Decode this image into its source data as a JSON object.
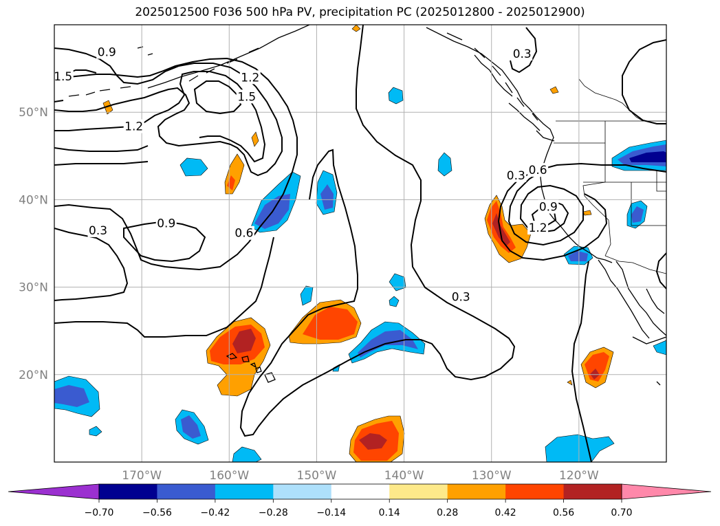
{
  "title": "2025012500 F036 500 hPa PV, precipitation PC (2025012800 - 2025012900)",
  "map": {
    "lon_range": [
      -180,
      -110
    ],
    "lat_range": [
      10,
      60
    ],
    "lon_ticks": [
      {
        "value": -170,
        "label": "170°W"
      },
      {
        "value": -160,
        "label": "160°W"
      },
      {
        "value": -150,
        "label": "150°W"
      },
      {
        "value": -140,
        "label": "140°W"
      },
      {
        "value": -130,
        "label": "130°W"
      },
      {
        "value": -120,
        "label": "120°W"
      }
    ],
    "lat_ticks": [
      {
        "value": 20,
        "label": "20°N"
      },
      {
        "value": 30,
        "label": "30°N"
      },
      {
        "value": 40,
        "label": "40°N"
      },
      {
        "value": 50,
        "label": "50°N"
      }
    ],
    "gridlines": true,
    "tick_label_color": "#808080"
  },
  "contour_labels": [
    {
      "text": "0.9",
      "lon": -174,
      "lat": 56.9
    },
    {
      "text": "1.5",
      "lon": -179,
      "lat": 54.1
    },
    {
      "text": "1.2",
      "lon": -170.9,
      "lat": 48.4
    },
    {
      "text": "1.2",
      "lon": -157.6,
      "lat": 54.0
    },
    {
      "text": "1.5",
      "lon": -158,
      "lat": 51.8
    },
    {
      "text": "0.9",
      "lon": -167.2,
      "lat": 37.3
    },
    {
      "text": "0.3",
      "lon": -175,
      "lat": 36.5
    },
    {
      "text": "0.6",
      "lon": -158.3,
      "lat": 36.2
    },
    {
      "text": "0.3",
      "lon": -133.5,
      "lat": 28.9
    },
    {
      "text": "0.3",
      "lon": -127.2,
      "lat": 42.8
    },
    {
      "text": "0.6",
      "lon": -124.7,
      "lat": 43.4
    },
    {
      "text": "0.9",
      "lon": -123.5,
      "lat": 39.2
    },
    {
      "text": "1.2",
      "lon": -124.7,
      "lat": 36.8
    },
    {
      "text": "0.3",
      "lon": -126.5,
      "lat": 56.7
    }
  ],
  "colorbar": {
    "ticks": [
      "−0.70",
      "−0.56",
      "−0.42",
      "−0.28",
      "−0.14",
      "0.14",
      "0.28",
      "0.42",
      "0.56",
      "0.70"
    ],
    "below_color": "#9b30d0",
    "above_color": "#ff88aa",
    "colors": [
      "#000090",
      "#3a5bd0",
      "#00baf5",
      "#aee0fb",
      "#ffffff",
      "#fde98a",
      "#ffa000",
      "#ff4500",
      "#b22222"
    ]
  }
}
